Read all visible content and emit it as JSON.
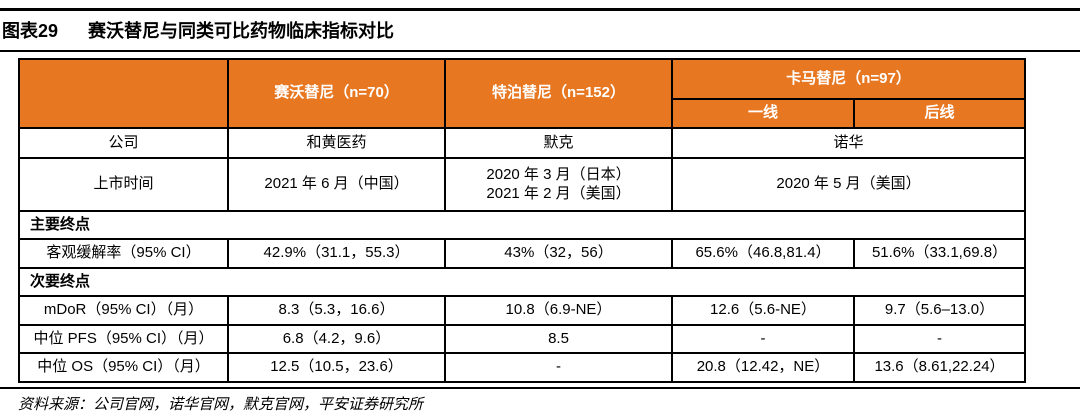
{
  "title": {
    "label": "图表29",
    "text": "赛沃替尼与同类可比药物临床指标对比"
  },
  "colors": {
    "header_orange": "#E87722",
    "border_black": "#000000",
    "header_text": "#FFFFFF"
  },
  "table": {
    "header": {
      "corner": "",
      "savolitinib": "赛沃替尼（n=70）",
      "tepotinib": "特泊替尼（n=152）",
      "capmatinib": "卡马替尼（n=97）",
      "capmatinib_first_line": "一线",
      "capmatinib_later_line": "后线"
    },
    "company": {
      "label": "公司",
      "savolitinib": "和黄医药",
      "tepotinib": "默克",
      "capmatinib": "诺华"
    },
    "launch": {
      "label": "上市时间",
      "savolitinib": "2021 年 6 月（中国）",
      "tepotinib_line1": "2020 年 3 月（日本）",
      "tepotinib_line2": "2021 年 2 月（美国）",
      "capmatinib": "2020 年 5 月（美国）"
    },
    "primary_section": "主要终点",
    "orr": {
      "label": "客观缓解率（95% CI）",
      "savolitinib": "42.9%（31.1，55.3）",
      "tepotinib": "43%（32，56）",
      "capmatinib_first": "65.6%（46.8,81.4）",
      "capmatinib_later": "51.6%（33.1,69.8）"
    },
    "secondary_section": "次要终点",
    "mdor": {
      "label": "mDoR（95% CI）（月）",
      "savolitinib": "8.3（5.3，16.6）",
      "tepotinib": "10.8（6.9-NE）",
      "capmatinib_first": "12.6（5.6-NE）",
      "capmatinib_later": "9.7（5.6–13.0）"
    },
    "pfs": {
      "label": "中位 PFS（95% CI）（月）",
      "savolitinib": "6.8（4.2，9.6）",
      "tepotinib": "8.5",
      "capmatinib_first": "-",
      "capmatinib_later": "-"
    },
    "os": {
      "label": "中位 OS（95% CI）（月）",
      "savolitinib": "12.5（10.5，23.6）",
      "tepotinib": "-",
      "capmatinib_first": "20.8（12.42，NE）",
      "capmatinib_later": "13.6（8.61,22.24）"
    }
  },
  "source": "资料来源：公司官网，诺华官网，默克官网，平安证券研究所"
}
